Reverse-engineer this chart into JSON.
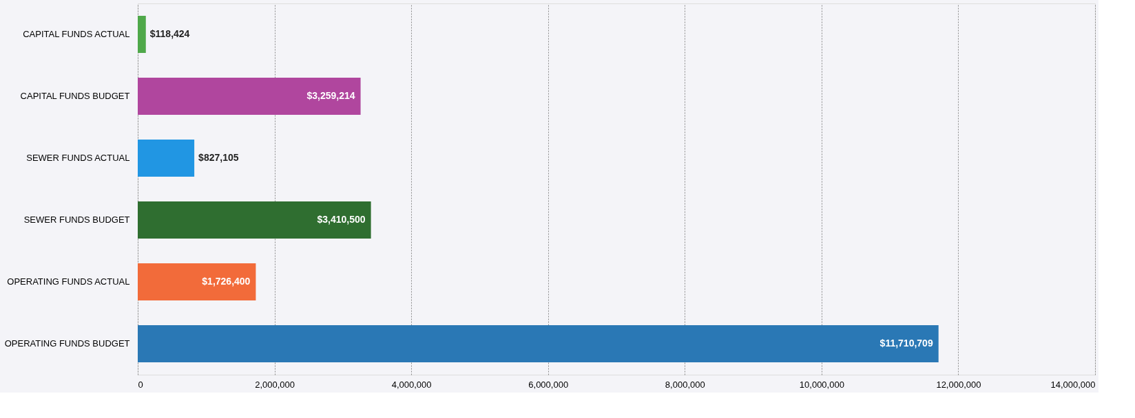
{
  "chart_data": {
    "type": "bar",
    "orientation": "horizontal",
    "categories": [
      "CAPITAL FUNDS ACTUAL",
      "CAPITAL FUNDS BUDGET",
      "SEWER FUNDS ACTUAL",
      "SEWER FUNDS BUDGET",
      "OPERATING FUNDS  ACTUAL",
      "OPERATING FUNDS BUDGET"
    ],
    "values": [
      118424,
      3259214,
      827105,
      3410500,
      1726400,
      11710709
    ],
    "colors": [
      "#4fa84a",
      "#b0469e",
      "#2196e3",
      "#2f6e30",
      "#f26b3a",
      "#2a78b5"
    ],
    "value_labels": [
      "$118,424",
      "$3,259,214",
      "$827,105",
      "$3,410,500",
      "$1,726,400",
      "$11,710,709"
    ],
    "xlim": [
      0,
      14000000
    ],
    "xticks": [
      0,
      {
        "value": 2000000,
        "label": "2,000,000"
      },
      {
        "value": 4000000,
        "label": "4,000,000"
      },
      {
        "value": 6000000,
        "label": "6,000,000"
      },
      {
        "value": 8000000,
        "label": "8,000,000"
      },
      {
        "value": 10000000,
        "label": "10,000,000"
      },
      {
        "value": 12000000,
        "label": "12,000,000"
      },
      {
        "value": 14000000,
        "label": "14,000,000"
      }
    ],
    "grid": "x"
  }
}
